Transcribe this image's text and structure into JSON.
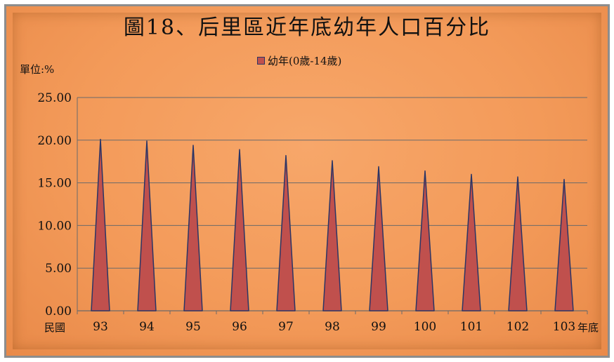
{
  "chart_data": {
    "type": "area",
    "title": "圖18、后里區近年底幼年人口百分比",
    "unit_label": "單位:%",
    "x_caption_left": "民國",
    "x_caption_right": "年底",
    "legend": [
      {
        "label": "幼年(0歲-14歲)",
        "color": "#c0504d"
      }
    ],
    "categories": [
      "93",
      "94",
      "95",
      "96",
      "97",
      "98",
      "99",
      "100",
      "101",
      "102",
      "103"
    ],
    "series": [
      {
        "name": "幼年(0歲-14歲)",
        "values": [
          20.1,
          19.9,
          19.4,
          18.9,
          18.2,
          17.6,
          16.9,
          16.4,
          16.0,
          15.7,
          15.4
        ]
      }
    ],
    "ylim": [
      0,
      25
    ],
    "yticks": [
      "0.00",
      "5.00",
      "10.00",
      "15.00",
      "20.00",
      "25.00"
    ],
    "grid": true,
    "legend_position": "top-center",
    "colors": {
      "fill": "#c0504d",
      "outline": "#2a3566",
      "grid": "#6a6a6a",
      "background": "#f39a59"
    }
  }
}
